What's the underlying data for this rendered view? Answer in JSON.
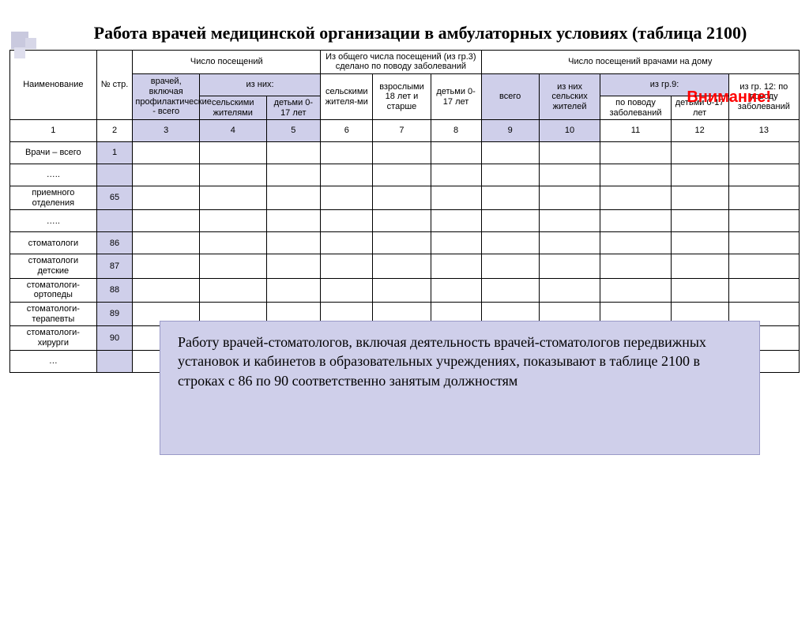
{
  "title": "Работа врачей медицинской организации в амбулаторных условиях (таблица 2100)",
  "attention": "Внимание!",
  "colors": {
    "highlight_bg": "#cfcfea",
    "attention_color": "#ff0000",
    "border": "#000000",
    "page_bg": "#ffffff"
  },
  "columns": {
    "c1": "Наименование",
    "c2": "№ стр.",
    "grp_visits": "Число посещений",
    "c3": "врачей, включая профилактические - всего",
    "grp_of_them": "из них:",
    "c4": "сельскими жителями",
    "c5": "детьми 0-17 лет",
    "grp_total_disease": "Из общего числа посещений (из гр.3) сделано по поводу заболеваний",
    "c6": "сельскими жителя-ми",
    "c7": "взрослыми 18 лет и старше",
    "c8": "детьми 0-17 лет",
    "grp_home": "Число посещений врачами на дому",
    "c9": "всего",
    "c10": "из них сельских жителей",
    "grp_gr9": "из гр.9:",
    "c11": "по поводу заболеваний",
    "c12": "детьми 0-17 лет",
    "c13": "из гр. 12: по поводу заболеваний"
  },
  "col_numbers": [
    "1",
    "2",
    "3",
    "4",
    "5",
    "6",
    "7",
    "8",
    "9",
    "10",
    "11",
    "12",
    "13"
  ],
  "rows": [
    {
      "label": "Врачи – всего",
      "num": "1"
    },
    {
      "label": "…..",
      "num": ""
    },
    {
      "label": "приемного отделения",
      "num": "65"
    },
    {
      "label": "…..",
      "num": ""
    },
    {
      "label": "стоматологи",
      "num": "86"
    },
    {
      "label": "стоматологи детские",
      "num": "87"
    },
    {
      "label": "стоматологи-ортопеды",
      "num": "88"
    },
    {
      "label": "стоматологи-терапевты",
      "num": "89"
    },
    {
      "label": "стоматологи-хирурги",
      "num": "90"
    },
    {
      "label": "…",
      "num": ""
    }
  ],
  "note": "Работу врачей-стоматологов, включая деятельность врачей-стоматологов передвижных установок и кабинетов в образовательных учреждениях, показывают в таблице 2100 в строках с 86 по 90 соответственно занятым должностям"
}
